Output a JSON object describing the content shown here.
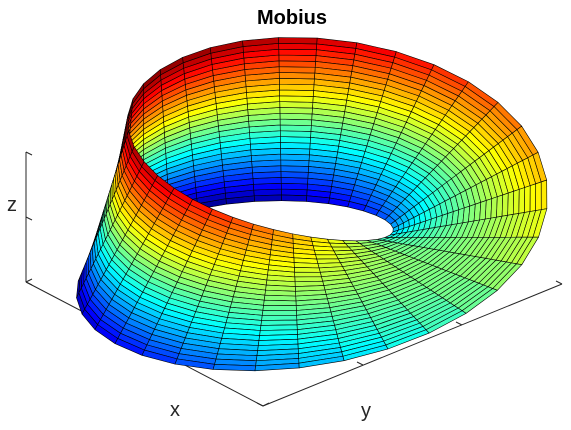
{
  "chart_data": {
    "type": "surface3d",
    "title": "Mobius",
    "xlabel": "x",
    "ylabel": "y",
    "zlabel": "z",
    "surface": {
      "name": "mobius",
      "u_range": [
        0,
        6.283185
      ],
      "u_steps": 36,
      "v_range": [
        -0.45,
        0.45
      ],
      "v_steps": 28,
      "radius": 1.0
    },
    "colormap": "jet",
    "edge_color": "#000000",
    "box": false,
    "grid": false,
    "view": {
      "azimuth": 37.5,
      "elevation": 30
    }
  }
}
